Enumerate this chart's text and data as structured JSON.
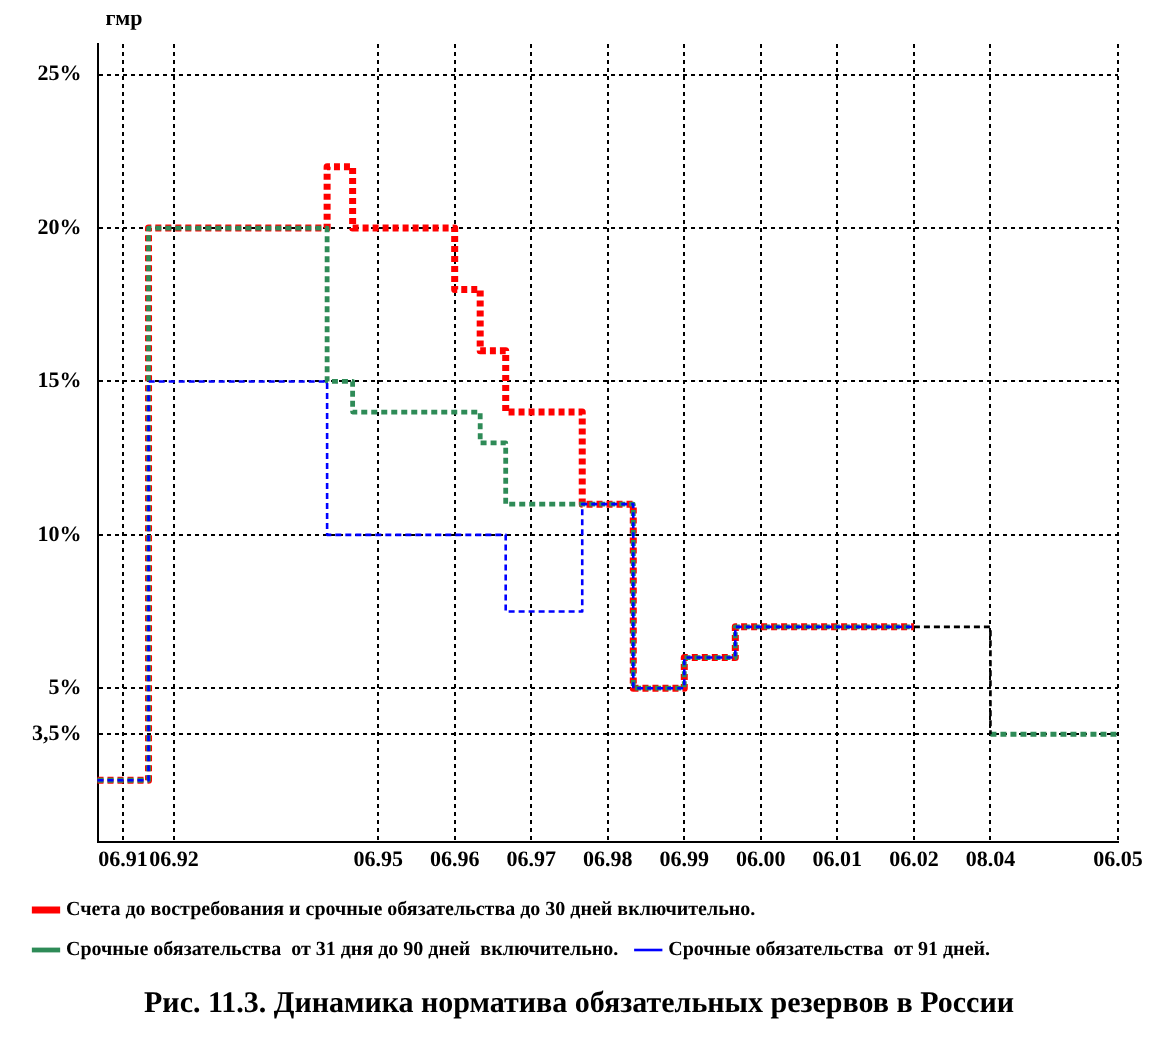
{
  "chart_data": {
    "type": "step",
    "title": "Рис. 11.3. Динамика норматива обязательных резервов в России",
    "ylabel": "гмр",
    "categories": [
      null,
      "06.91",
      null,
      "06.92",
      null,
      null,
      null,
      null,
      null,
      null,
      null,
      "06.95",
      null,
      null,
      "06.96",
      null,
      null,
      "06.97",
      null,
      null,
      "06.98",
      null,
      null,
      "06.99",
      null,
      null,
      "06.00",
      null,
      null,
      "06.01",
      null,
      null,
      "06.02",
      null,
      null,
      "08.04",
      null,
      null,
      null,
      null,
      "06.05"
    ],
    "ylim": [
      0,
      26
    ],
    "yticks": [
      {
        "value": 3.5,
        "label": "3,5%"
      },
      {
        "value": 5,
        "label": "5%"
      },
      {
        "value": 10,
        "label": "10%"
      },
      {
        "value": 15,
        "label": "15%"
      },
      {
        "value": 20,
        "label": "20%"
      },
      {
        "value": 25,
        "label": "25%"
      }
    ],
    "grid": true,
    "legend": "bottom",
    "line_style": "dotted",
    "series": [
      {
        "name": "Счета до востребования и срочные обязательства до 30 дней включительно.",
        "color": "#ff0000",
        "values": [
          2,
          2,
          20,
          20,
          20,
          20,
          20,
          20,
          20,
          22,
          20,
          20,
          20,
          20,
          18,
          16,
          14,
          14,
          14,
          11,
          11,
          5,
          5,
          6,
          6,
          7,
          7,
          7,
          7,
          7,
          7,
          7,
          7,
          null,
          null,
          null,
          null,
          null,
          null,
          null,
          null
        ]
      },
      {
        "name": "Срочные обязательства  от 31 дня до 90 дней  включительно.",
        "color": "#2e8b57",
        "values": [
          2,
          2,
          20,
          20,
          20,
          20,
          20,
          20,
          20,
          15,
          14,
          14,
          14,
          14,
          14,
          13,
          11,
          11,
          11,
          11,
          11,
          5,
          5,
          6,
          6,
          7,
          7,
          7,
          7,
          7,
          7,
          7,
          7,
          null,
          null,
          3.5,
          3.5,
          3.5,
          3.5,
          3.5,
          3.5
        ]
      },
      {
        "name": "Срочные обязательства  от 91 дней.",
        "color": "#0000ff",
        "values": [
          2,
          2,
          15,
          15,
          15,
          15,
          15,
          15,
          15,
          10,
          10,
          10,
          10,
          10,
          10,
          10,
          7.5,
          7.5,
          7.5,
          11,
          11,
          5,
          5,
          6,
          6,
          7,
          7,
          7,
          7,
          7,
          7,
          7,
          7,
          null,
          null,
          null,
          null,
          null,
          null,
          null,
          null
        ]
      },
      {
        "color": "#000000",
        "values": [
          null,
          null,
          null,
          null,
          null,
          null,
          null,
          null,
          null,
          null,
          null,
          null,
          null,
          null,
          null,
          null,
          null,
          null,
          null,
          null,
          null,
          null,
          null,
          null,
          null,
          null,
          null,
          null,
          null,
          null,
          null,
          null,
          7,
          7,
          7,
          3.5,
          null,
          null,
          null,
          null,
          null
        ]
      }
    ]
  }
}
